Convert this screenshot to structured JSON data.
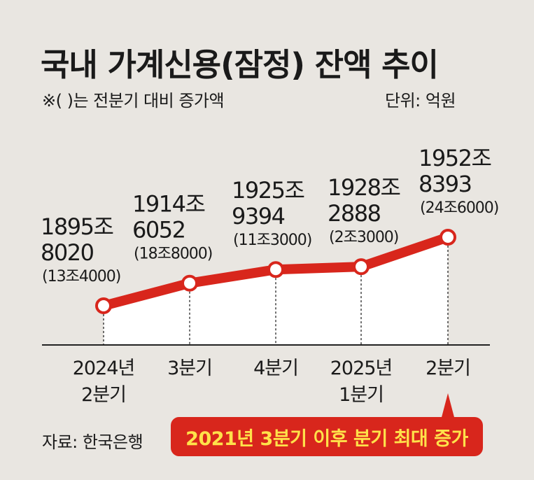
{
  "title": "국내 가계신용(잠정) 잔액 추이",
  "note": "※( )는 전분기 대비 증가액",
  "unit": "단위: 억원",
  "source": "자료: 한국은행",
  "callout": "2021년 3분기 이후 분기 최대 증가",
  "colors": {
    "line": "#d8261c",
    "callout_bg": "#d8261c",
    "callout_text": "#ffe24a",
    "area": "#ffffff",
    "background": "#e9e6e1"
  },
  "chart_data": {
    "type": "area",
    "categories": [
      [
        "2024년",
        "2분기"
      ],
      [
        "3분기"
      ],
      [
        "4분기"
      ],
      [
        "2025년",
        "1분기"
      ],
      [
        "2분기"
      ]
    ],
    "values": [
      18958020,
      19146052,
      19259394,
      19282888,
      19528393
    ],
    "value_labels": [
      [
        "1895조",
        "8020"
      ],
      [
        "1914조",
        "6052"
      ],
      [
        "1925조",
        "9394"
      ],
      [
        "1928조",
        "2888"
      ],
      [
        "1952조",
        "8393"
      ]
    ],
    "change_labels": [
      "(13조4000)",
      "(18조8000)",
      "(11조3000)",
      "(2조3000)",
      "(24조6000)"
    ],
    "changes": [
      134000,
      188000,
      113000,
      23000,
      246000
    ],
    "highlight_index": 4
  }
}
